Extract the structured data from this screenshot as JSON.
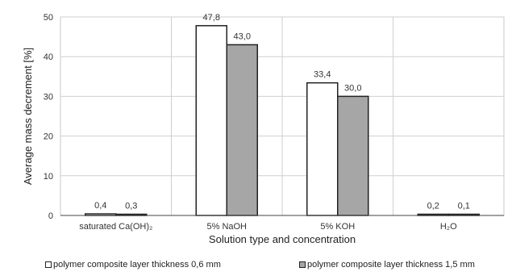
{
  "chart_data": {
    "type": "bar",
    "title": "",
    "xlabel": "Solution type and concentration",
    "ylabel": "Average mass decrement [%]",
    "ylim": [
      0,
      50
    ],
    "yticks": [
      0,
      10,
      20,
      30,
      40,
      50
    ],
    "grid": true,
    "legend_position": "bottom",
    "categories": [
      "saturated Ca(OH)₂",
      "5% NaOH",
      "5% KOH",
      "H₂O"
    ],
    "series": [
      {
        "name": "polymer composite layer thickness 0,6 mm",
        "color": "#ffffff",
        "values": [
          0.4,
          47.8,
          33.4,
          0.2
        ],
        "labels": [
          "0,4",
          "47,8",
          "33,4",
          "0,2"
        ]
      },
      {
        "name": "polymer composite layer thickness 1,5 mm",
        "color": "#a6a6a6",
        "values": [
          0.3,
          43.0,
          30.0,
          0.1
        ],
        "labels": [
          "0,3",
          "43,0",
          "30,0",
          "0,1"
        ]
      }
    ]
  }
}
